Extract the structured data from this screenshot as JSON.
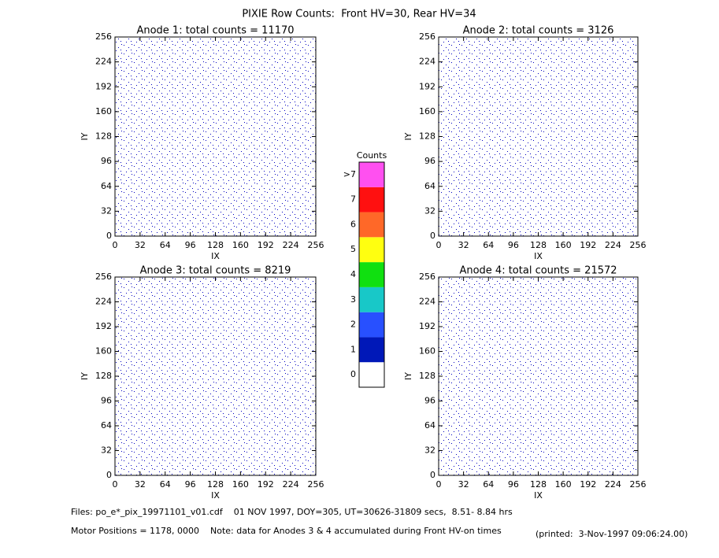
{
  "title": "PIXIE Row Counts:  Front HV=30, Rear HV=34",
  "chart_data": [
    {
      "type": "image",
      "title": "Anode 1: total counts = 11170",
      "xlabel": "IX",
      "ylabel": "IY",
      "xlim": [
        0,
        256
      ],
      "ylim": [
        0,
        256
      ],
      "xticks": [
        0,
        32,
        64,
        96,
        128,
        160,
        192,
        224,
        256
      ],
      "yticks": [
        0,
        32,
        64,
        96,
        128,
        160,
        192,
        224,
        256
      ]
    },
    {
      "type": "image",
      "title": "Anode 2: total counts = 3126",
      "xlabel": "IX",
      "ylabel": "IY",
      "xlim": [
        0,
        256
      ],
      "ylim": [
        0,
        256
      ],
      "xticks": [
        0,
        32,
        64,
        96,
        128,
        160,
        192,
        224,
        256
      ],
      "yticks": [
        0,
        32,
        64,
        96,
        128,
        160,
        192,
        224,
        256
      ]
    },
    {
      "type": "image",
      "title": "Anode 3: total counts = 8219",
      "xlabel": "IX",
      "ylabel": "IY",
      "xlim": [
        0,
        256
      ],
      "ylim": [
        0,
        256
      ],
      "xticks": [
        0,
        32,
        64,
        96,
        128,
        160,
        192,
        224,
        256
      ],
      "yticks": [
        0,
        32,
        64,
        96,
        128,
        160,
        192,
        224,
        256
      ]
    },
    {
      "type": "image",
      "title": "Anode 4: total counts = 21572",
      "xlabel": "IX",
      "ylabel": "IY",
      "xlim": [
        0,
        256
      ],
      "ylim": [
        0,
        256
      ],
      "xticks": [
        0,
        32,
        64,
        96,
        128,
        160,
        192,
        224,
        256
      ],
      "yticks": [
        0,
        32,
        64,
        96,
        128,
        160,
        192,
        224,
        256
      ]
    }
  ],
  "colorbar": {
    "title": "Counts",
    "categories": [
      "0",
      "1",
      "2",
      "3",
      "4",
      "5",
      "6",
      "7",
      ">7"
    ],
    "colors": [
      "#ffffff",
      "#0018b8",
      "#2850ff",
      "#18c8c8",
      "#10e010",
      "#ffff10",
      "#ff6828",
      "#ff1010",
      "#ff50f0"
    ]
  },
  "footer": {
    "files": "Files: po_e*_pix_19971101_v01.cdf    01 NOV 1997, DOY=305, UT=30626-31809 secs,  8.51- 8.84 hrs",
    "motor": "Motor Positions = 1178, 0000    Note: data for Anodes 3 & 4 accumulated during Front HV-on times",
    "printed": "(printed:  3-Nov-1997 09:06:24.00)"
  }
}
